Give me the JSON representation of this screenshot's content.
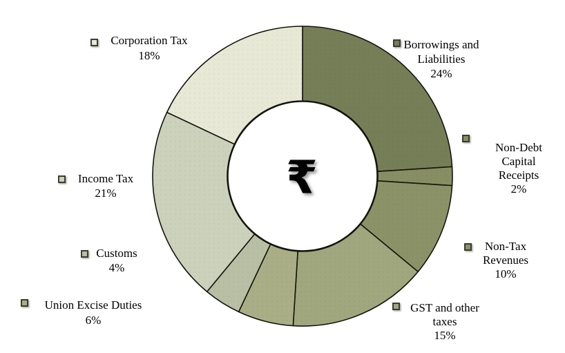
{
  "page": {
    "background": "#ffffff"
  },
  "chart_data": {
    "type": "pie",
    "subtype": "donut",
    "title": "",
    "center_symbol": "₹",
    "unit": "%",
    "direction": "clockwise",
    "start_angle_deg": 0,
    "inner_radius_ratio": 0.5,
    "stroke_color": "#14140c",
    "hole_color": "#ffffff",
    "legend_position": "around",
    "categories": [
      "Borrowings and Liabilities",
      "Non-Debt Capital Receipts",
      "Non-Tax Revenues",
      "GST and other taxes",
      "Union Excise Duties",
      "Customs",
      "Income Tax",
      "Corporation Tax"
    ],
    "values": [
      24,
      2,
      10,
      15,
      6,
      4,
      21,
      18
    ],
    "slices": [
      {
        "id": "borrowings-and-liabilities",
        "value": 24,
        "color": "#767E58",
        "lines": [
          "Borrowings and",
          "Liabilities",
          "24%"
        ]
      },
      {
        "id": "non-debt-capital-receipts",
        "value": 2,
        "color": "#878E63",
        "lines": [
          "Non-Debt",
          "Capital",
          "Receipts",
          "2%"
        ]
      },
      {
        "id": "non-tax-revenues",
        "value": 10,
        "color": "#8B9268",
        "lines": [
          "Non-Tax",
          "Revenues",
          "10%"
        ]
      },
      {
        "id": "gst-and-other-taxes",
        "value": 15,
        "color": "#A0A77E",
        "lines": [
          "GST and other",
          "taxes",
          "15%"
        ]
      },
      {
        "id": "union-excise-duties",
        "value": 6,
        "color": "#A9AE87",
        "lines": [
          "Union Excise Duties",
          "6%"
        ]
      },
      {
        "id": "customs",
        "value": 4,
        "color": "#B8BFA4",
        "lines": [
          "Customs",
          "4%"
        ]
      },
      {
        "id": "income-tax",
        "value": 21,
        "color": "#CCD1BC",
        "lines": [
          "Income Tax",
          "21%"
        ]
      },
      {
        "id": "corporation-tax",
        "value": 18,
        "color": "#E7E9D6",
        "lines": [
          "Corporation Tax",
          "18%"
        ]
      }
    ]
  }
}
